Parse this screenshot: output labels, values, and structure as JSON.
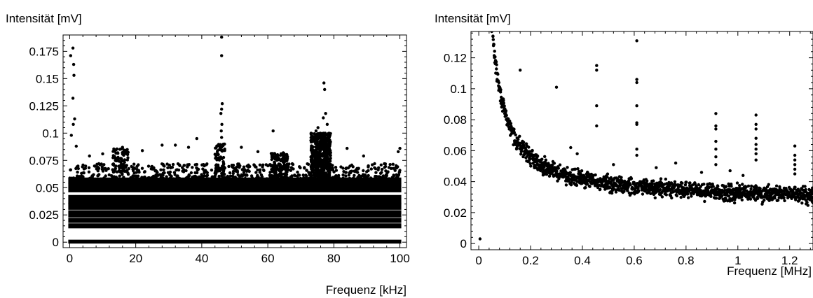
{
  "chart_data": [
    {
      "type": "scatter",
      "ylabel": "Intensität [mV]",
      "xlabel": "Frequenz [kHz]",
      "xlim": [
        -2,
        102
      ],
      "ylim": [
        -0.005,
        0.19
      ],
      "x_ticks": [
        0,
        20,
        40,
        60,
        80,
        100
      ],
      "y_ticks": [
        0,
        0.025,
        0.05,
        0.075,
        0.1,
        0.125,
        0.15,
        0.175
      ],
      "x_tick_labels": [
        "0",
        "20",
        "40",
        "60",
        "80",
        "100"
      ],
      "y_tick_labels": [
        "0",
        "0.025",
        "0.05",
        "0.075",
        "0.1",
        "0.125",
        "0.15",
        "0.175"
      ],
      "bands": [
        {
          "x0": 0,
          "x1": 100,
          "y0": 0.0,
          "y1": 0.001
        },
        {
          "x0": 0,
          "x1": 100,
          "y0": 0.014,
          "y1": 0.016
        },
        {
          "x0": 0,
          "x1": 100,
          "y0": 0.019,
          "y1": 0.021
        },
        {
          "x0": 0,
          "x1": 100,
          "y0": 0.024,
          "y1": 0.028
        },
        {
          "x0": 0,
          "x1": 100,
          "y0": 0.031,
          "y1": 0.035
        },
        {
          "x0": 0,
          "x1": 100,
          "y0": 0.036,
          "y1": 0.042
        },
        {
          "x0": 0,
          "x1": 100,
          "y0": 0.047,
          "y1": 0.053
        },
        {
          "x0": 0,
          "x1": 100,
          "y0": 0.055,
          "y1": 0.058
        }
      ],
      "scatter_regions": [
        {
          "x0": 0,
          "x1": 100,
          "y0": 0.058,
          "y1": 0.062,
          "n": 260
        },
        {
          "x0": 0,
          "x1": 100,
          "y0": 0.063,
          "y1": 0.072,
          "n": 320
        },
        {
          "x0": 73,
          "x1": 79,
          "y0": 0.058,
          "y1": 0.1,
          "n": 500
        },
        {
          "x0": 61,
          "x1": 66,
          "y0": 0.058,
          "y1": 0.082,
          "n": 140
        },
        {
          "x0": 13,
          "x1": 18,
          "y0": 0.062,
          "y1": 0.086,
          "n": 80
        },
        {
          "x0": 44,
          "x1": 47,
          "y0": 0.062,
          "y1": 0.09,
          "n": 60
        }
      ],
      "points": [
        [
          0.3,
          0.171
        ],
        [
          1.0,
          0.178
        ],
        [
          1.2,
          0.163
        ],
        [
          1.3,
          0.153
        ],
        [
          1.0,
          0.132
        ],
        [
          1.5,
          0.113
        ],
        [
          1.1,
          0.108
        ],
        [
          0.5,
          0.098
        ],
        [
          2.0,
          0.088
        ],
        [
          46.0,
          0.188
        ],
        [
          46.0,
          0.171
        ],
        [
          46.2,
          0.127
        ],
        [
          46.0,
          0.122
        ],
        [
          45.8,
          0.118
        ],
        [
          46.1,
          0.108
        ],
        [
          45.9,
          0.102
        ],
        [
          46.0,
          0.096
        ],
        [
          77.0,
          0.146
        ],
        [
          77.2,
          0.14
        ],
        [
          77.5,
          0.118
        ],
        [
          76.8,
          0.114
        ],
        [
          78.0,
          0.108
        ],
        [
          75.2,
          0.105
        ],
        [
          74.6,
          0.102
        ],
        [
          61.6,
          0.102
        ],
        [
          38.5,
          0.095
        ],
        [
          52.0,
          0.087
        ],
        [
          32.0,
          0.089
        ],
        [
          28.0,
          0.089
        ],
        [
          16.0,
          0.087
        ],
        [
          22.0,
          0.084
        ],
        [
          84.0,
          0.086
        ],
        [
          89.0,
          0.079
        ],
        [
          100.0,
          0.086
        ],
        [
          99.5,
          0.083
        ],
        [
          10.0,
          0.081
        ],
        [
          57.0,
          0.083
        ],
        [
          36.0,
          0.087
        ],
        [
          6.0,
          0.079
        ]
      ]
    },
    {
      "type": "scatter",
      "ylabel": "Intensität [mV]",
      "xlabel": "Frequenz [MHz]",
      "xlim": [
        -0.03,
        1.29
      ],
      "ylim": [
        -0.004,
        0.137
      ],
      "x_ticks": [
        0,
        0.2,
        0.4,
        0.6,
        0.8,
        1,
        1.2
      ],
      "y_ticks": [
        0,
        0.02,
        0.04,
        0.06,
        0.08,
        0.1,
        0.12
      ],
      "x_tick_labels": [
        "0",
        "0.2",
        "0.4",
        "0.6",
        "0.8",
        "1",
        "1.2"
      ],
      "y_tick_labels": [
        "0",
        "0.02",
        "0.04",
        "0.06",
        "0.08",
        "0.1",
        "0.12"
      ],
      "curve": {
        "x_start": 0.055,
        "x_end": 1.29,
        "n": 1400,
        "spread": 0.0032
      },
      "points": [
        [
          0.005,
          0.003
        ],
        [
          0.05,
          0.137
        ],
        [
          0.055,
          0.134
        ],
        [
          0.16,
          0.112
        ],
        [
          0.3,
          0.101
        ],
        [
          0.455,
          0.115
        ],
        [
          0.455,
          0.112
        ],
        [
          0.455,
          0.089
        ],
        [
          0.455,
          0.076
        ],
        [
          0.61,
          0.131
        ],
        [
          0.61,
          0.106
        ],
        [
          0.61,
          0.104
        ],
        [
          0.61,
          0.089
        ],
        [
          0.61,
          0.078
        ],
        [
          0.61,
          0.077
        ],
        [
          0.61,
          0.061
        ],
        [
          0.61,
          0.057
        ],
        [
          0.915,
          0.084
        ],
        [
          0.915,
          0.076
        ],
        [
          0.915,
          0.074
        ],
        [
          0.915,
          0.066
        ],
        [
          0.915,
          0.061
        ],
        [
          0.915,
          0.056
        ],
        [
          0.915,
          0.051
        ],
        [
          1.07,
          0.083
        ],
        [
          1.07,
          0.077
        ],
        [
          1.07,
          0.074
        ],
        [
          1.07,
          0.068
        ],
        [
          1.07,
          0.064
        ],
        [
          1.07,
          0.061
        ],
        [
          1.07,
          0.058
        ],
        [
          1.07,
          0.054
        ],
        [
          1.22,
          0.063
        ],
        [
          1.22,
          0.057
        ],
        [
          1.22,
          0.054
        ],
        [
          1.22,
          0.051
        ],
        [
          1.22,
          0.048
        ],
        [
          1.22,
          0.045
        ],
        [
          0.76,
          0.052
        ],
        [
          0.685,
          0.049
        ],
        [
          0.86,
          0.046
        ],
        [
          0.355,
          0.062
        ],
        [
          0.38,
          0.058
        ],
        [
          0.52,
          0.051
        ],
        [
          0.97,
          0.047
        ],
        [
          1.02,
          0.044
        ]
      ]
    }
  ]
}
